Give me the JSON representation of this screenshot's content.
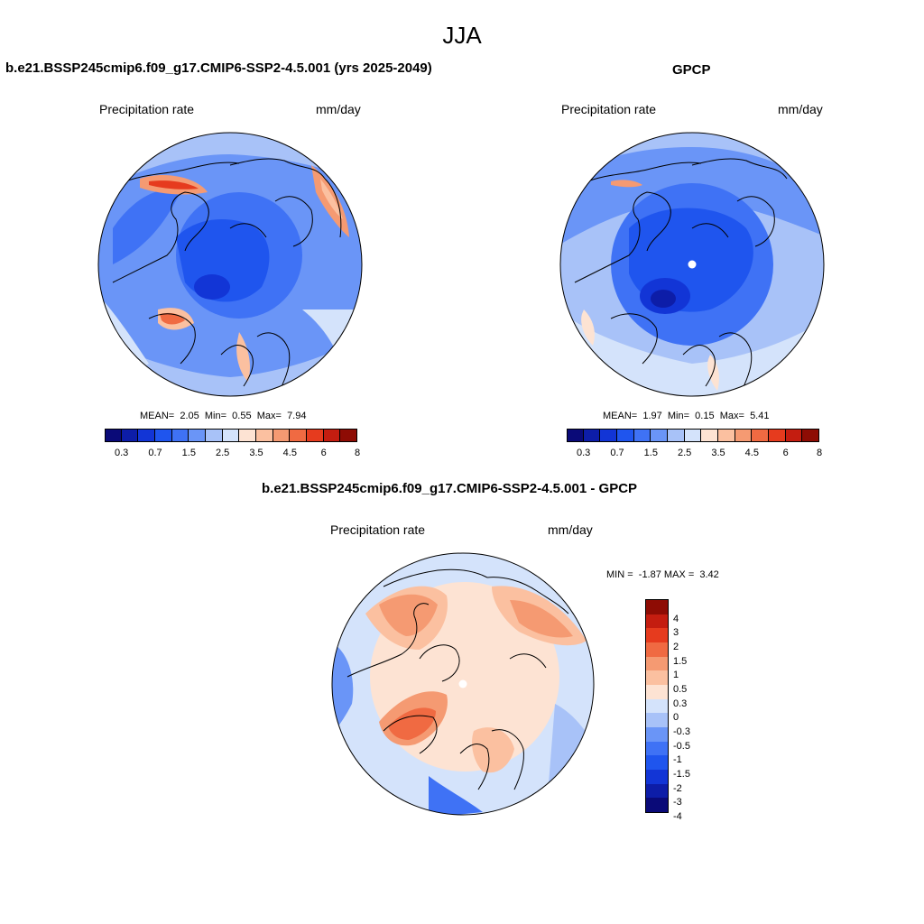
{
  "figure": {
    "title": "JJA"
  },
  "panels": [
    {
      "id": "model",
      "title": "b.e21.BSSP245cmip6.f09_g17.CMIP6-SSP2-4.5.001 (yrs 2025-2049)",
      "left_label": "Precipitation rate",
      "right_label": "mm/day",
      "stats": {
        "mean_label": "MEAN=",
        "mean": "2.05",
        "min_label": "Min=",
        "min": "0.55",
        "max_label": "Max=",
        "max": "7.94"
      }
    },
    {
      "id": "obs",
      "title": "GPCP",
      "left_label": "Precipitation rate",
      "right_label": "mm/day",
      "stats": {
        "mean_label": "MEAN=",
        "mean": "1.97",
        "min_label": "Min=",
        "min": "0.15",
        "max_label": "Max=",
        "max": "5.41"
      }
    },
    {
      "id": "diff",
      "title": "b.e21.BSSP245cmip6.f09_g17.CMIP6-SSP2-4.5.001 - GPCP",
      "left_label": "Precipitation rate",
      "right_label": "mm/day",
      "stats": {
        "min_label": "MIN =",
        "min": "-1.87",
        "max_label": "MAX =",
        "max": "3.42"
      }
    }
  ],
  "colorbars": {
    "absolute": {
      "colors": [
        "#0a0a78",
        "#0d1da8",
        "#1235d6",
        "#1f55ee",
        "#3f72f5",
        "#6a95f7",
        "#a8c2f8",
        "#d4e3fb",
        "#fde3d3",
        "#fbc0a0",
        "#f59a72",
        "#f06a42",
        "#e63b1e",
        "#c41d10",
        "#8e0c04"
      ],
      "tick_labels": [
        "0.3",
        "0.7",
        "1.5",
        "2.5",
        "3.5",
        "4.5",
        "6",
        "8"
      ]
    },
    "difference": {
      "colors": [
        "#8e0c04",
        "#c41d10",
        "#e63b1e",
        "#f06a42",
        "#f59a72",
        "#fbc0a0",
        "#fde3d3",
        "#d4e3fb",
        "#a8c2f8",
        "#6a95f7",
        "#3f72f5",
        "#1f55ee",
        "#1235d6",
        "#0d1da8",
        "#0a0a78"
      ],
      "tick_labels": [
        "4",
        "3",
        "2",
        "1.5",
        "1",
        "0.5",
        "0.3",
        "0",
        "-0.3",
        "-0.5",
        "-1",
        "-1.5",
        "-2",
        "-3",
        "-4"
      ]
    }
  }
}
